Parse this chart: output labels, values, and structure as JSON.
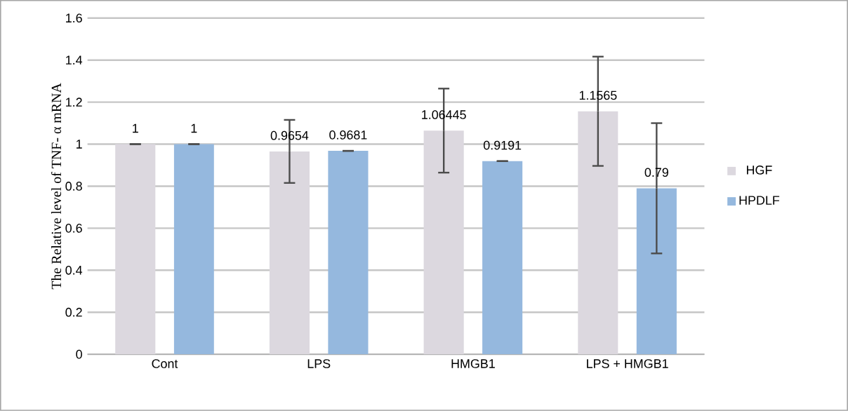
{
  "chart_data": {
    "type": "bar",
    "ylabel": "The Relative level of TNF- α mRNA",
    "categories": [
      "Cont",
      "LPS",
      "HMGB1",
      "LPS + HMGB1"
    ],
    "series": [
      {
        "name": "HGF",
        "color": "#dcd8df",
        "values": [
          1,
          0.9654,
          1.06445,
          1.1565
        ],
        "errors": [
          0,
          0.15,
          0.2,
          0.26
        ]
      },
      {
        "name": "HPDLF",
        "color": "#95b8de",
        "values": [
          1,
          0.9681,
          0.9191,
          0.79
        ],
        "errors": [
          0,
          0,
          0,
          0.31
        ]
      }
    ],
    "ylim": [
      0,
      1.6
    ],
    "yticks": [
      0,
      0.2,
      0.4,
      0.6,
      0.8,
      1,
      1.2,
      1.4,
      1.6
    ],
    "grid": "y",
    "legend": "right",
    "data_labels": true
  }
}
